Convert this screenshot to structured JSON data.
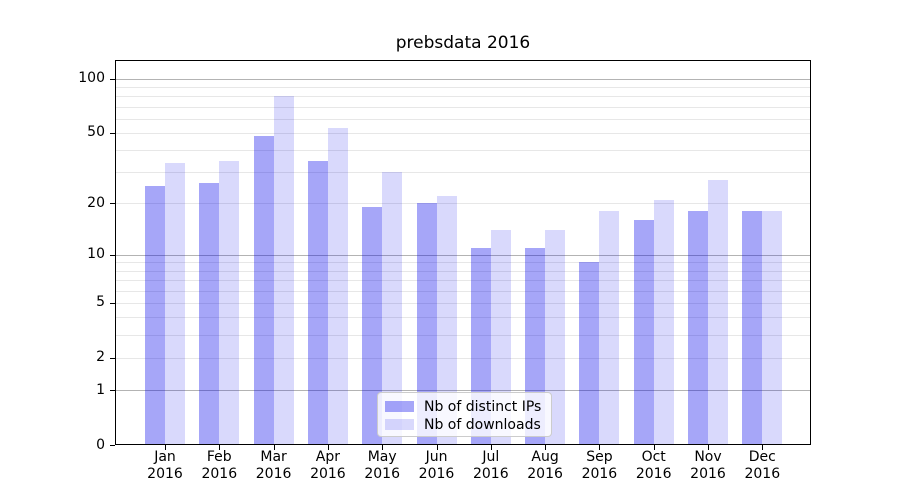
{
  "title": "prebsdata 2016",
  "chart_data": {
    "type": "bar",
    "title": "prebsdata 2016",
    "categories": [
      "Jan",
      "Feb",
      "Mar",
      "Apr",
      "May",
      "Jun",
      "Jul",
      "Aug",
      "Sep",
      "Oct",
      "Nov",
      "Dec"
    ],
    "x_tick_line2": "2016",
    "series": [
      {
        "name": "Nb of distinct IPs",
        "color": "rgba(0,0,235,0.35)",
        "color_hex_on_white": "#a6a6f8",
        "values": [
          25,
          26,
          48,
          35,
          19,
          20,
          11,
          11,
          9,
          16,
          18,
          18
        ]
      },
      {
        "name": "Nb of downloads",
        "color": "rgba(0,0,235,0.15)",
        "color_hex_on_white": "#d9d9fc",
        "values": [
          34,
          35,
          80,
          53,
          30,
          22,
          14,
          14,
          18,
          21,
          27,
          18
        ]
      }
    ],
    "yscale": "log1p",
    "ylim": [
      0,
      126.6
    ],
    "yticks": [
      0,
      1,
      2,
      5,
      10,
      20,
      50,
      100
    ],
    "grid": {
      "major_values": [
        1,
        10,
        100
      ],
      "minor_values": [
        2,
        3,
        4,
        5,
        6,
        7,
        8,
        9,
        20,
        30,
        40,
        50,
        60,
        70,
        80,
        90
      ],
      "major_color": "#b3b3b3",
      "minor_color": "#e7e7e7"
    },
    "legend": {
      "position": "lower center",
      "entries": [
        "Nb of distinct IPs",
        "Nb of downloads"
      ]
    },
    "axis_color": "#000000",
    "background_color": "#ffffff"
  }
}
